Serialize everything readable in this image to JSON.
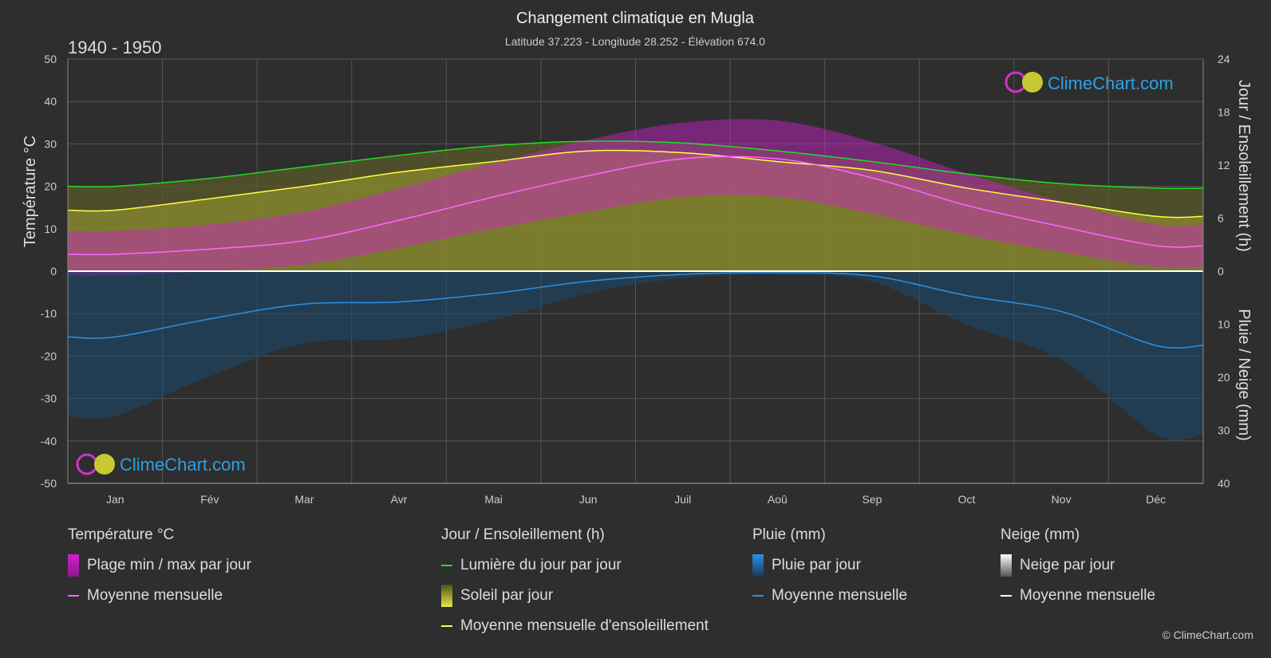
{
  "header": {
    "title": "Changement climatique en Mugla",
    "subtitle": "Latitude 37.223 - Longitude 28.252 - Élévation 674.0",
    "period": "1940 - 1950"
  },
  "brand": {
    "name": "ClimeChart.com",
    "copyright": "© ClimeChart.com"
  },
  "colors": {
    "background": "#2e2e2e",
    "temp_range": "#d020d0",
    "temp_mean": "#ff66ff",
    "daylight": "#22dd22",
    "sunshine_fill": "#a0a030",
    "sunshine_mean": "#ffff44",
    "rain": "#1e78c8",
    "rain_mean": "#2a90e8",
    "snow": "#cccccc",
    "snow_mean": "#ffffff",
    "brand": "#29a3e6"
  },
  "legend": {
    "temperature": {
      "title": "Température °C",
      "items": [
        "Plage min / max par jour",
        "Moyenne mensuelle"
      ]
    },
    "sun": {
      "title": "Jour / Ensoleillement (h)",
      "items": [
        "Lumière du jour par jour",
        "Soleil par jour",
        "Moyenne mensuelle d'ensoleillement"
      ]
    },
    "rain": {
      "title": "Pluie (mm)",
      "items": [
        "Pluie par jour",
        "Moyenne mensuelle"
      ]
    },
    "snow": {
      "title": "Neige (mm)",
      "items": [
        "Neige par jour",
        "Moyenne mensuelle"
      ]
    }
  },
  "chart_data": {
    "type": "area",
    "categories": [
      "Jan",
      "Fév",
      "Mar",
      "Avr",
      "Mai",
      "Jun",
      "Juil",
      "Aoû",
      "Sep",
      "Oct",
      "Nov",
      "Déc"
    ],
    "y_left": {
      "label": "Température °C",
      "range": [
        -50,
        50
      ],
      "ticks": [
        50,
        40,
        30,
        20,
        10,
        0,
        -10,
        -20,
        -30,
        -40,
        -50
      ]
    },
    "y_right_top": {
      "label": "Jour / Ensoleillement (h)",
      "range": [
        0,
        24
      ],
      "ticks": [
        24,
        18,
        12,
        6,
        0
      ]
    },
    "y_right_bottom": {
      "label": "Pluie / Neige (mm)",
      "range": [
        0,
        40
      ],
      "ticks": [
        0,
        10,
        20,
        30,
        40
      ]
    },
    "grid": true,
    "series": [
      {
        "name": "Lumière du jour par jour",
        "axis": "hours",
        "values": [
          9.6,
          10.5,
          11.8,
          13.1,
          14.2,
          14.7,
          14.5,
          13.6,
          12.4,
          11.0,
          9.9,
          9.4
        ]
      },
      {
        "name": "Moyenne mensuelle d'ensoleillement",
        "axis": "hours",
        "values": [
          6.9,
          8.2,
          9.6,
          11.2,
          12.4,
          13.6,
          13.4,
          12.4,
          11.4,
          9.4,
          7.8,
          6.2
        ]
      },
      {
        "name": "Moyenne mensuelle",
        "kind": "temp_mean",
        "axis": "temp",
        "values": [
          4.0,
          5.2,
          7.2,
          12.0,
          17.5,
          22.5,
          26.5,
          26.5,
          22.0,
          15.5,
          10.5,
          6.0
        ]
      },
      {
        "name": "Temp max",
        "kind": "temp_max",
        "axis": "temp",
        "values": [
          9.5,
          11.0,
          14.0,
          19.5,
          25.5,
          31.0,
          35.0,
          35.5,
          30.5,
          23.0,
          16.5,
          11.0
        ]
      },
      {
        "name": "Temp min",
        "kind": "temp_min",
        "axis": "temp",
        "values": [
          -1.0,
          0.0,
          1.5,
          5.5,
          10.0,
          14.0,
          17.5,
          17.5,
          13.5,
          8.5,
          4.5,
          1.0
        ]
      },
      {
        "name": "Moyenne mensuelle",
        "kind": "rain_mean",
        "axis": "mm",
        "values": [
          12.4,
          9.0,
          6.2,
          5.8,
          4.2,
          1.9,
          0.6,
          0.3,
          0.9,
          4.6,
          7.6,
          14.0
        ]
      },
      {
        "name": "Moyenne mensuelle",
        "kind": "snow_mean",
        "axis": "mm",
        "values": [
          0,
          0,
          0,
          0,
          0,
          0,
          0,
          0,
          0,
          0,
          0,
          0
        ]
      }
    ]
  }
}
